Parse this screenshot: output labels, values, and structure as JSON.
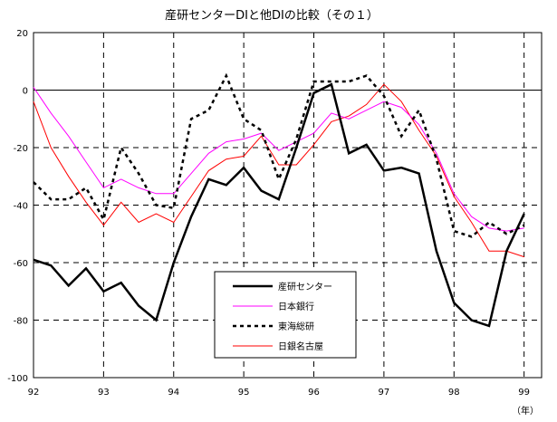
{
  "chart_data": {
    "type": "line",
    "title": "産研センターDIと他DIの比較（その１）",
    "xlabel": "（年）",
    "ylabel": "",
    "xlim": [
      92,
      99.25
    ],
    "ylim": [
      -100,
      20
    ],
    "x_ticks": [
      "92",
      "93",
      "94",
      "95",
      "96",
      "97",
      "98",
      "99"
    ],
    "y_ticks": [
      "20",
      "0",
      "-20",
      "-40",
      "-60",
      "-80",
      "-100"
    ],
    "grid": "dashed",
    "legend_position": "center-bottom",
    "series": [
      {
        "name": "産研センター",
        "color": "#000000",
        "style": "solid-thick",
        "x": [
          92.0,
          92.25,
          92.5,
          92.75,
          93.0,
          93.25,
          93.5,
          93.75,
          94.0,
          94.25,
          94.5,
          94.75,
          95.0,
          95.25,
          95.5,
          95.75,
          96.0,
          96.25,
          96.5,
          96.75,
          97.0,
          97.25,
          97.5,
          97.75,
          98.0,
          98.25,
          98.5,
          98.75,
          99.0
        ],
        "values": [
          -59,
          -61,
          -68,
          -62,
          -70,
          -67,
          -75,
          -80,
          -60,
          -44,
          -31,
          -33,
          -27,
          -35,
          -38,
          -20,
          -1,
          2,
          -22,
          -19,
          -28,
          -27,
          -29,
          -56,
          -74,
          -80,
          -82,
          -56,
          -43
        ]
      },
      {
        "name": "日本銀行",
        "color": "#ff00ff",
        "style": "solid-thin",
        "x": [
          92.0,
          92.25,
          92.5,
          92.75,
          93.0,
          93.25,
          93.5,
          93.75,
          94.0,
          94.25,
          94.5,
          94.75,
          95.0,
          95.25,
          95.5,
          95.75,
          96.0,
          96.25,
          96.5,
          96.75,
          97.0,
          97.25,
          97.5,
          97.75,
          98.0,
          98.25,
          98.5,
          98.75,
          99.0
        ],
        "values": [
          1,
          -8,
          -16,
          -25,
          -34,
          -31,
          -34,
          -36,
          -36,
          -29,
          -22,
          -18,
          -17,
          -15,
          -21,
          -18,
          -15,
          -8,
          -10,
          -7,
          -4,
          -6,
          -12,
          -22,
          -36,
          -44,
          -48,
          -49,
          -48
        ]
      },
      {
        "name": "東海総研",
        "color": "#000000",
        "style": "dotted",
        "x": [
          92.0,
          92.25,
          92.5,
          92.75,
          93.0,
          93.25,
          93.5,
          93.75,
          94.0,
          94.25,
          94.5,
          94.75,
          95.0,
          95.25,
          95.5,
          95.75,
          96.0,
          96.25,
          96.5,
          96.75,
          97.0,
          97.25,
          97.5,
          97.75,
          98.0,
          98.25,
          98.5,
          98.75,
          99.0
        ],
        "values": [
          -32,
          -38,
          -38,
          -34,
          -45,
          -20,
          -29,
          -40,
          -41,
          -10,
          -7,
          5,
          -10,
          -14,
          -31,
          -17,
          3,
          3,
          3,
          5,
          -2,
          -16,
          -7,
          -24,
          -49,
          -51,
          -46,
          -50,
          -47
        ]
      },
      {
        "name": "日銀名古屋",
        "color": "#ff0000",
        "style": "solid-thin",
        "x": [
          92.0,
          92.25,
          92.5,
          92.75,
          93.0,
          93.25,
          93.5,
          93.75,
          94.0,
          94.25,
          94.5,
          94.75,
          95.0,
          95.25,
          95.5,
          95.75,
          96.0,
          96.25,
          96.5,
          96.75,
          97.0,
          97.25,
          97.5,
          97.75,
          98.0,
          98.25,
          98.5,
          98.75,
          99.0
        ],
        "values": [
          -4,
          -20,
          -30,
          -39,
          -47,
          -39,
          -46,
          -43,
          -46,
          -37,
          -28,
          -24,
          -23,
          -16,
          -26,
          -26,
          -19,
          -11,
          -9,
          -5,
          2,
          -4,
          -14,
          -23,
          -37,
          -46,
          -56,
          -56,
          -58
        ]
      }
    ]
  }
}
